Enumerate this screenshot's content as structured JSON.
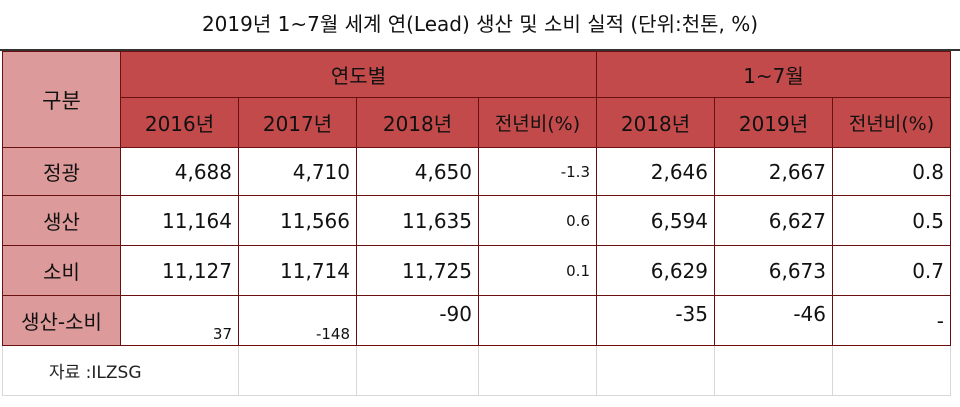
{
  "title": "2019년 1~7월 세계 연(Lead) 생산 및 소비 실적 (단위:천톤, %)",
  "header": {
    "corner": "구분",
    "group_annual": "연도별",
    "group_ytd": "1~7월",
    "annual_cols": [
      "2016년",
      "2017년",
      "2018년",
      "전년비(%)"
    ],
    "ytd_cols": [
      "2018년",
      "2019년",
      "전년비(%)"
    ]
  },
  "rows": [
    {
      "label": "정광",
      "values": [
        "4,688",
        "4,710",
        "4,650",
        "-1.3",
        "2,646",
        "2,667",
        "0.8"
      ]
    },
    {
      "label": "생산",
      "values": [
        "11,164",
        "11,566",
        "11,635",
        "0.6",
        "6,594",
        "6,627",
        "0.5"
      ]
    },
    {
      "label": "소비",
      "values": [
        "11,127",
        "11,714",
        "11,725",
        "0.1",
        "6,629",
        "6,673",
        "0.7"
      ]
    },
    {
      "label": "생산-소비",
      "values": [
        "37",
        "-148",
        "-90",
        "",
        "-35",
        "-46",
        "-"
      ]
    }
  ],
  "source": "자료 :ILZSG"
}
